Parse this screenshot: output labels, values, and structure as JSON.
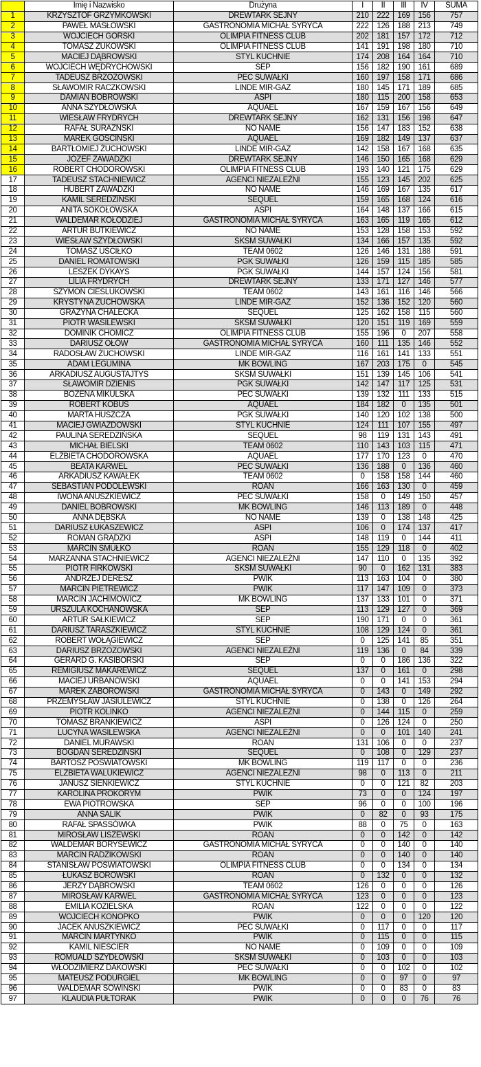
{
  "header": {
    "rank": "",
    "name": "Imię i Nazwisko",
    "team": "Drużyna",
    "r1": "I",
    "r2": "II",
    "r3": "III",
    "r4": "IV",
    "sum": "SUMA"
  },
  "highlight_color": "#ffff00",
  "stripe_color": "#dedede",
  "highlighted_ranks_upto": 16,
  "rows": [
    [
      "1",
      "KRZYSZTOF GRZYMKOWSKI",
      "DREWTARK SEJNY",
      "210",
      "222",
      "169",
      "156",
      "757"
    ],
    [
      "2",
      "PAWEŁ MASŁOWSKI",
      "GASTRONOMIA MICHAŁ SYRYCA",
      "222",
      "126",
      "188",
      "213",
      "749"
    ],
    [
      "3",
      "WOJCIECH GÓRSKI",
      "OLIMPIA FITNESS CLUB",
      "202",
      "181",
      "157",
      "172",
      "712"
    ],
    [
      "4",
      "TOMASZ ŻUKOWSKI",
      "OLIMPIA FITNESS CLUB",
      "141",
      "191",
      "198",
      "180",
      "710"
    ],
    [
      "5",
      "MACIEJ DĄBROWSKI",
      "STYL KUCHNIE",
      "174",
      "208",
      "164",
      "164",
      "710"
    ],
    [
      "6",
      "WOJCIECH WĘDRYCHOWSKI",
      "SEP",
      "156",
      "182",
      "190",
      "161",
      "689"
    ],
    [
      "7",
      "TADEUSZ BRZOZOWSKI",
      "PEC SUWAŁKI",
      "160",
      "197",
      "158",
      "171",
      "686"
    ],
    [
      "8",
      "SŁAWOMIR RACZKOWSKI",
      "LINDE MIR-GAZ",
      "180",
      "145",
      "171",
      "189",
      "685"
    ],
    [
      "9",
      "DAMIAN BOBROWSKI",
      "ASPI",
      "180",
      "115",
      "200",
      "158",
      "653"
    ],
    [
      "10",
      "ANNA SZYDŁOWSKA",
      "AQUAEL",
      "167",
      "159",
      "167",
      "156",
      "649"
    ],
    [
      "11",
      "WIESŁAW FRYDRYCH",
      "DREWTARK SEJNY",
      "162",
      "131",
      "156",
      "198",
      "647"
    ],
    [
      "12",
      "RAFAŁ SURAŻŃSKI",
      "NO NAME",
      "156",
      "147",
      "183",
      "152",
      "638"
    ],
    [
      "13",
      "MAREK GOŚCIŃSKI",
      "AQUAEL",
      "169",
      "182",
      "149",
      "137",
      "637"
    ],
    [
      "14",
      "BARTŁOMIEJ ŻUCHOWSKI",
      "LINDE MIR-GAZ",
      "142",
      "158",
      "167",
      "168",
      "635"
    ],
    [
      "15",
      "JÓZEF ZAWADZKI",
      "DREWTARK SEJNY",
      "146",
      "150",
      "165",
      "168",
      "629"
    ],
    [
      "16",
      "ROBERT CHODOROWSKI",
      "OLIMPIA FITNESS CLUB",
      "193",
      "140",
      "121",
      "175",
      "629"
    ],
    [
      "17",
      "TADEUSZ STACHNIEWICZ",
      "AGENCI NIEZALEŻNI",
      "155",
      "123",
      "145",
      "202",
      "625"
    ],
    [
      "18",
      "HUBERT ZAWADZKI",
      "NO NAME",
      "146",
      "169",
      "167",
      "135",
      "617"
    ],
    [
      "19",
      "KAMIL SEREDZIŃSKI",
      "SEQUEL",
      "159",
      "165",
      "168",
      "124",
      "616"
    ],
    [
      "20",
      "ANITA SOKOŁOWSKA",
      "ASPI",
      "164",
      "148",
      "137",
      "166",
      "615"
    ],
    [
      "21",
      "WALDEMAR KOŁODZIEJ",
      "GASTRONOMIA MICHAŁ SYRYCA",
      "163",
      "165",
      "119",
      "165",
      "612"
    ],
    [
      "22",
      "ARTUR BUTKIEWICZ",
      "NO NAME",
      "153",
      "128",
      "158",
      "153",
      "592"
    ],
    [
      "23",
      "WIESŁAW SZYDŁOWSKI",
      "SKSM SUWAŁKI",
      "134",
      "166",
      "157",
      "135",
      "592"
    ],
    [
      "24",
      "TOMASZ UŚCIŁKO",
      "TEAM 0602",
      "126",
      "146",
      "131",
      "188",
      "591"
    ],
    [
      "25",
      "DANIEL ROMATOWSKI",
      "PGK SUWAŁKI",
      "126",
      "159",
      "115",
      "185",
      "585"
    ],
    [
      "26",
      "LESZEK DYKAYS",
      "PGK SUWAŁKI",
      "144",
      "157",
      "124",
      "156",
      "581"
    ],
    [
      "27",
      "LILIA FRYDRYCH",
      "DREWTARK SEJNY",
      "133",
      "171",
      "127",
      "146",
      "577"
    ],
    [
      "28",
      "SZYMON CIEŚLUKOWSKI",
      "TEAM 0602",
      "143",
      "161",
      "116",
      "146",
      "566"
    ],
    [
      "29",
      "KRYSTYNA ŻUCHOWSKA",
      "LINDE MIR-GAZ",
      "152",
      "136",
      "152",
      "120",
      "560"
    ],
    [
      "30",
      "GRAŻYNA CHALECKA",
      "SEQUEL",
      "125",
      "162",
      "158",
      "115",
      "560"
    ],
    [
      "31",
      "PIOTR WASILEWSKI",
      "SKSM SUWAŁKI",
      "120",
      "151",
      "119",
      "169",
      "559"
    ],
    [
      "32",
      "DOMINIK CHOMICZ",
      "OLIMPIA FITNESS CLUB",
      "155",
      "196",
      "0",
      "207",
      "558"
    ],
    [
      "33",
      "DARIUSZ OŁÓW",
      "GASTRONOMIA MICHAŁ SYRYCA",
      "160",
      "111",
      "135",
      "146",
      "552"
    ],
    [
      "34",
      "RADOSŁAW ŻUCHOWSKI",
      "LINDE MIR-GAZ",
      "116",
      "161",
      "141",
      "133",
      "551"
    ],
    [
      "35",
      "ADAM LEGUMINA",
      "MK BOWLING",
      "167",
      "203",
      "175",
      "0",
      "545"
    ],
    [
      "36",
      "ARKADIUSZ AUGUSTAJTYS",
      "SKSM SUWAŁKI",
      "151",
      "139",
      "145",
      "106",
      "541"
    ],
    [
      "37",
      "SŁAWOMIR DZIENIS",
      "PGK SUWAŁKI",
      "142",
      "147",
      "117",
      "125",
      "531"
    ],
    [
      "38",
      "BOŻENA MIKULSKA",
      "PEC SUWAŁKI",
      "139",
      "132",
      "111",
      "133",
      "515"
    ],
    [
      "39",
      "ROBERT KOBUS",
      "AQUAEL",
      "184",
      "182",
      "0",
      "135",
      "501"
    ],
    [
      "40",
      "MARTA HUSZCZA",
      "PGK SUWAŁKI",
      "140",
      "120",
      "102",
      "138",
      "500"
    ],
    [
      "41",
      "MACIEJ GWIAZDOWSKI",
      "STYL KUCHNIE",
      "124",
      "111",
      "107",
      "155",
      "497"
    ],
    [
      "42",
      "PAULINA SEREDZIŃSKA",
      "SEQUEL",
      "98",
      "119",
      "131",
      "143",
      "491"
    ],
    [
      "43",
      "MICHAŁ BIELSKI",
      "TEAM 0602",
      "110",
      "143",
      "103",
      "115",
      "471"
    ],
    [
      "44",
      "ELŻBIETA CHODOROWSKA",
      "AQUAEL",
      "177",
      "170",
      "123",
      "0",
      "470"
    ],
    [
      "45",
      "BEATA KARWEL",
      "PEC SUWAŁKI",
      "136",
      "188",
      "0",
      "136",
      "460"
    ],
    [
      "46",
      "ARKADIUSZ KAWAŁEK",
      "TEAM 0602",
      "0",
      "158",
      "158",
      "144",
      "460"
    ],
    [
      "47",
      "SEBASTIAN PODOLEWSKI",
      "ROAN",
      "166",
      "163",
      "130",
      "0",
      "459"
    ],
    [
      "48",
      "IWONA ANUSZKIEWICZ",
      "PEC SUWAŁKI",
      "158",
      "0",
      "149",
      "150",
      "457"
    ],
    [
      "49",
      "DANIEL BOBROWSKI",
      "MK BOWLING",
      "146",
      "113",
      "189",
      "0",
      "448"
    ],
    [
      "50",
      "ANNA DĘBSKA",
      "NO NAME",
      "139",
      "0",
      "138",
      "148",
      "425"
    ],
    [
      "51",
      "DARIUSZ ŁUKASZEWICZ",
      "ASPI",
      "106",
      "0",
      "174",
      "137",
      "417"
    ],
    [
      "52",
      "ROMAN GRĄDZKI",
      "ASPI",
      "148",
      "119",
      "0",
      "144",
      "411"
    ],
    [
      "53",
      "MARCIN SMUŁKO",
      "ROAN",
      "155",
      "129",
      "118",
      "0",
      "402"
    ],
    [
      "54",
      "MARZANNA STACHNIEWICZ",
      "AGENCI NIEZALEŻNI",
      "147",
      "110",
      "0",
      "135",
      "392"
    ],
    [
      "55",
      "PIOTR FIRKOWSKI",
      "SKSM SUWAŁKI",
      "90",
      "0",
      "162",
      "131",
      "383"
    ],
    [
      "56",
      "ANDRZEJ DERESZ",
      "PWIK",
      "113",
      "163",
      "104",
      "0",
      "380"
    ],
    [
      "57",
      "MARCIN PIETREWICZ",
      "PWIK",
      "117",
      "147",
      "109",
      "0",
      "373"
    ],
    [
      "58",
      "MARCIN JACHIMOWICZ",
      "MK BOWLING",
      "137",
      "133",
      "101",
      "0",
      "371"
    ],
    [
      "59",
      "URSZULA KOCHANOWSKA",
      "SEP",
      "113",
      "129",
      "127",
      "0",
      "369"
    ],
    [
      "60",
      "ARTUR SAŁKIEWICZ",
      "SEP",
      "190",
      "171",
      "0",
      "0",
      "361"
    ],
    [
      "61",
      "DARIUSZ TARASZKIEWICZ",
      "STYL KUCHNIE",
      "108",
      "129",
      "124",
      "0",
      "361"
    ],
    [
      "62",
      "ROBERT WOŁĄGIEWICZ",
      "SEP",
      "0",
      "125",
      "141",
      "85",
      "351"
    ],
    [
      "63",
      "DARIUSZ BRZOZOWSKI",
      "AGENCI NIEZALEŻNI",
      "119",
      "136",
      "0",
      "84",
      "339"
    ],
    [
      "64",
      "GERARD G. KASIBORSKI",
      "SEP",
      "0",
      "0",
      "186",
      "136",
      "322"
    ],
    [
      "65",
      "REMIGIUSZ MAKAREWICZ",
      "SEQUEL",
      "137",
      "0",
      "161",
      "0",
      "298"
    ],
    [
      "66",
      "MACIEJ URBANOWSKI",
      "AQUAEL",
      "0",
      "0",
      "141",
      "153",
      "294"
    ],
    [
      "67",
      "MAREK ZABOROWSKI",
      "GASTRONOMIA MICHAŁ SYRYCA",
      "0",
      "143",
      "0",
      "149",
      "292"
    ],
    [
      "68",
      "PRZEMYSŁAW JASIULEWICZ",
      "STYL KUCHNIE",
      "0",
      "138",
      "0",
      "126",
      "264"
    ],
    [
      "69",
      "PIOTR KOLINKO",
      "AGENCI NIEZALEŻNI",
      "0",
      "144",
      "115",
      "0",
      "259"
    ],
    [
      "70",
      "TOMASZ BRANKIEWICZ",
      "ASPI",
      "0",
      "126",
      "124",
      "0",
      "250"
    ],
    [
      "71",
      "LUCYNA WASILEWSKA",
      "AGENCI NIEZALEŻNI",
      "0",
      "0",
      "101",
      "140",
      "241"
    ],
    [
      "72",
      "DANIEL MURAWSKI",
      "ROAN",
      "131",
      "106",
      "0",
      "0",
      "237"
    ],
    [
      "73",
      "BOGDAN SEREDZIŃSKI",
      "SEQUEL",
      "0",
      "108",
      "0",
      "129",
      "237"
    ],
    [
      "74",
      "BARTOSZ POŚWIATOWSKI",
      "MK BOWLING",
      "119",
      "117",
      "0",
      "0",
      "236"
    ],
    [
      "75",
      "ELŻBIETA WALUKIEWICZ",
      "AGENCI NIEZALEŻNI",
      "98",
      "0",
      "113",
      "0",
      "211"
    ],
    [
      "76",
      "JANUSZ SIENKIEWICZ",
      "STYL KUCHNIE",
      "0",
      "0",
      "121",
      "82",
      "203"
    ],
    [
      "77",
      "KAROLINA PROKORYM",
      "PWIK",
      "73",
      "0",
      "0",
      "124",
      "197"
    ],
    [
      "78",
      "EWA PIOTROWSKA",
      "SEP",
      "96",
      "0",
      "0",
      "100",
      "196"
    ],
    [
      "79",
      "ANNA SALIK",
      "PWIK",
      "0",
      "82",
      "0",
      "93",
      "175"
    ],
    [
      "80",
      "RAFAŁ SPASSÓWKA",
      "PWIK",
      "88",
      "0",
      "75",
      "0",
      "163"
    ],
    [
      "81",
      "MIROSŁAW LISZEWSKI",
      "ROAN",
      "0",
      "0",
      "142",
      "0",
      "142"
    ],
    [
      "82",
      "WALDEMAR BORYSEWICZ",
      "GASTRONOMIA MICHAŁ SYRYCA",
      "0",
      "0",
      "140",
      "0",
      "140"
    ],
    [
      "83",
      "MARCIN RADZIKOWSKI",
      "ROAN",
      "0",
      "0",
      "140",
      "0",
      "140"
    ],
    [
      "84",
      "STANISŁAW POŚWIATOWSKI",
      "OLIMPIA FITNESS CLUB",
      "0",
      "0",
      "134",
      "0",
      "134"
    ],
    [
      "85",
      "ŁUKASZ BOROWSKI",
      "ROAN",
      "0",
      "132",
      "0",
      "0",
      "132"
    ],
    [
      "86",
      "JERZY DĄBROWSKI",
      "TEAM 0602",
      "126",
      "0",
      "0",
      "0",
      "126"
    ],
    [
      "87",
      "MIROSŁAW KARWEL",
      "GASTRONOMIA MICHAŁ SYRYCA",
      "123",
      "0",
      "0",
      "0",
      "123"
    ],
    [
      "88",
      "EMILIA KOZIELSKA",
      "ROAN",
      "122",
      "0",
      "0",
      "0",
      "122"
    ],
    [
      "89",
      "WOJCIECH KONOPKO",
      "PWIK",
      "0",
      "0",
      "0",
      "120",
      "120"
    ],
    [
      "90",
      "JACEK ANUSZKIEWICZ",
      "PEC SUWAŁKI",
      "0",
      "117",
      "0",
      "0",
      "117"
    ],
    [
      "91",
      "MARCIN MARTYNKO",
      "PWIK",
      "0",
      "115",
      "0",
      "0",
      "115"
    ],
    [
      "92",
      "KAMIL NIEŚCIER",
      "NO NAME",
      "0",
      "109",
      "0",
      "0",
      "109"
    ],
    [
      "93",
      "ROMUALD SZYDŁOWSKI",
      "SKSM SUWAŁKI",
      "0",
      "103",
      "0",
      "0",
      "103"
    ],
    [
      "94",
      "WŁODZIMIERZ DAKOWSKI",
      "PEC SUWAŁKI",
      "0",
      "0",
      "102",
      "0",
      "102"
    ],
    [
      "95",
      "MATEUSZ PODURGIEL",
      "MK BOWLING",
      "0",
      "0",
      "97",
      "0",
      "97"
    ],
    [
      "96",
      "WALDEMAR SOWIŃSKI",
      "PWIK",
      "0",
      "0",
      "83",
      "0",
      "83"
    ],
    [
      "97",
      "KLAUDIA PUŁTORAK",
      "PWIK",
      "0",
      "0",
      "0",
      "76",
      "76"
    ]
  ]
}
